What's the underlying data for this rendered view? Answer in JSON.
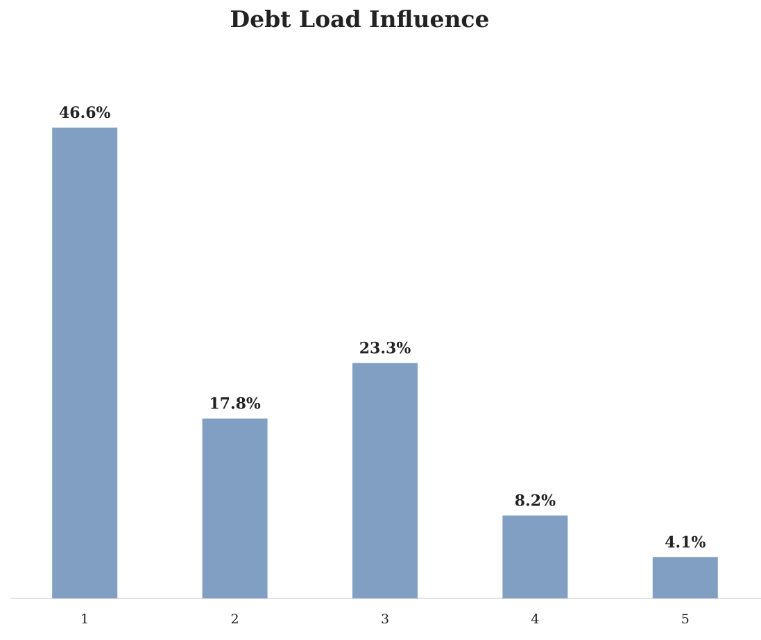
{
  "chart_data": {
    "type": "bar",
    "title": "Debt Load Influence",
    "xlabel": "",
    "ylabel": "",
    "categories": [
      "1",
      "2",
      "3",
      "4",
      "5"
    ],
    "values": [
      46.6,
      17.8,
      23.3,
      8.2,
      4.1
    ],
    "value_labels": [
      "46.6%",
      "17.8%",
      "23.3%",
      "8.2%",
      "4.1%"
    ],
    "ylim": [
      0,
      50
    ],
    "grid": false,
    "legend": "none",
    "colors": {
      "bar": "#809fc3",
      "axis": "#d9d9d9",
      "text": "#222222"
    }
  }
}
